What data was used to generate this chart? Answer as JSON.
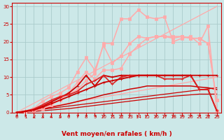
{
  "background_color": "#cce8e8",
  "grid_color": "#aacccc",
  "xlabel": "Vent moyen/en rafales ( km/h )",
  "xlim": [
    -0.5,
    23.5
  ],
  "ylim": [
    0,
    31
  ],
  "yticks": [
    0,
    5,
    10,
    15,
    20,
    25,
    30
  ],
  "xticks": [
    0,
    1,
    2,
    3,
    4,
    5,
    6,
    7,
    8,
    9,
    10,
    11,
    12,
    13,
    14,
    15,
    16,
    17,
    18,
    19,
    20,
    21,
    22,
    23
  ],
  "red_dark": "#cc0000",
  "red_mid": "#ee2222",
  "red_light": "#ff8888",
  "series": [
    {
      "name": "ref_diagonal_light_top",
      "x": [
        0,
        23
      ],
      "y": [
        0,
        30
      ],
      "color": "#ffaaaa",
      "lw": 0.9,
      "marker": null,
      "zorder": 1
    },
    {
      "name": "ref_diagonal_light_low",
      "x": [
        0,
        23
      ],
      "y": [
        0,
        10
      ],
      "color": "#ffaaaa",
      "lw": 0.9,
      "marker": null,
      "zorder": 1
    },
    {
      "name": "ref_diagonal_dark_low",
      "x": [
        0,
        23
      ],
      "y": [
        0,
        7
      ],
      "color": "#cc0000",
      "lw": 0.9,
      "marker": null,
      "zorder": 1
    },
    {
      "name": "line_pink_top_jagged",
      "x": [
        0,
        1,
        2,
        3,
        4,
        5,
        6,
        7,
        8,
        9,
        10,
        11,
        12,
        13,
        14,
        15,
        16,
        17,
        18,
        19,
        20,
        21,
        22,
        23
      ],
      "y": [
        0,
        0.3,
        0.8,
        1.5,
        3.0,
        4.5,
        5.2,
        6.5,
        9.0,
        11.0,
        19.5,
        19.5,
        26.5,
        26.5,
        29.0,
        27.0,
        26.5,
        27.0,
        20.0,
        21.0,
        21.5,
        19.5,
        24.5,
        0.5
      ],
      "color": "#ffaaaa",
      "lw": 1.1,
      "marker": "s",
      "markersize": 2.2,
      "zorder": 3
    },
    {
      "name": "line_pink_second",
      "x": [
        0,
        1,
        2,
        3,
        4,
        5,
        6,
        7,
        8,
        9,
        10,
        11,
        12,
        13,
        14,
        15,
        16,
        17,
        18,
        19,
        20,
        21,
        22,
        23
      ],
      "y": [
        0,
        0.4,
        1.2,
        3.2,
        4.5,
        5.5,
        7.0,
        11.5,
        15.5,
        12.0,
        19.0,
        14.0,
        16.0,
        19.5,
        21.5,
        21.0,
        21.5,
        21.5,
        21.5,
        21.5,
        21.0,
        21.0,
        19.5,
        3.5
      ],
      "color": "#ffaaaa",
      "lw": 1.1,
      "marker": "s",
      "markersize": 2.2,
      "zorder": 3
    },
    {
      "name": "line_pink_third_lower",
      "x": [
        0,
        1,
        2,
        3,
        4,
        5,
        6,
        7,
        8,
        9,
        10,
        11,
        12,
        13,
        14,
        15,
        16,
        17,
        18,
        19,
        20,
        21,
        22,
        23
      ],
      "y": [
        0,
        0.2,
        0.5,
        1.0,
        2.2,
        3.5,
        5.5,
        8.5,
        11.5,
        9.5,
        12.0,
        12.0,
        12.5,
        16.5,
        19.0,
        21.0,
        21.5,
        21.5,
        21.0,
        21.5,
        21.0,
        21.0,
        19.5,
        3.5
      ],
      "color": "#ffaaaa",
      "lw": 1.1,
      "marker": "s",
      "markersize": 2.2,
      "zorder": 3
    },
    {
      "name": "line_dark_red_zigzag",
      "x": [
        0,
        1,
        2,
        3,
        4,
        5,
        6,
        7,
        8,
        9,
        10,
        11,
        12,
        13,
        14,
        15,
        16,
        17,
        18,
        19,
        20,
        21,
        22,
        23
      ],
      "y": [
        0,
        0.3,
        0.8,
        1.8,
        3.0,
        4.2,
        5.5,
        7.5,
        10.5,
        7.5,
        10.5,
        10.0,
        10.5,
        10.5,
        10.5,
        10.5,
        10.5,
        10.5,
        10.5,
        10.5,
        10.5,
        6.5,
        6.5,
        0.5
      ],
      "color": "#cc0000",
      "lw": 1.3,
      "marker": "+",
      "markersize": 3.5,
      "zorder": 4
    },
    {
      "name": "line_mid_red",
      "x": [
        0,
        1,
        2,
        3,
        4,
        5,
        6,
        7,
        8,
        9,
        10,
        11,
        12,
        13,
        14,
        15,
        16,
        17,
        18,
        19,
        20,
        21,
        22,
        23
      ],
      "y": [
        0,
        0.4,
        1.0,
        2.2,
        3.5,
        4.5,
        5.0,
        6.0,
        8.0,
        9.0,
        10.5,
        8.0,
        10.0,
        10.5,
        10.5,
        10.5,
        10.5,
        9.5,
        9.5,
        9.5,
        10.5,
        6.5,
        6.5,
        0.5
      ],
      "color": "#dd2222",
      "lw": 1.2,
      "marker": "+",
      "markersize": 3.5,
      "zorder": 4
    },
    {
      "name": "line_dark_smooth_upper",
      "x": [
        0,
        1,
        2,
        3,
        4,
        5,
        6,
        7,
        8,
        9,
        10,
        11,
        12,
        13,
        14,
        15,
        16,
        17,
        18,
        19,
        20,
        21,
        22,
        23
      ],
      "y": [
        0,
        0.3,
        0.7,
        1.5,
        2.5,
        3.5,
        4.5,
        5.5,
        6.5,
        7.5,
        8.5,
        9.0,
        9.5,
        10.0,
        10.5,
        10.5,
        10.5,
        10.5,
        10.5,
        10.5,
        10.5,
        10.5,
        10.5,
        10.5
      ],
      "color": "#cc0000",
      "lw": 1.3,
      "marker": "+",
      "markersize": 3.5,
      "zorder": 4
    },
    {
      "name": "line_dark_solid_diagonal",
      "x": [
        0,
        1,
        2,
        3,
        4,
        5,
        6,
        7,
        8,
        9,
        10,
        11,
        12,
        13,
        14,
        15,
        16,
        17,
        18,
        19,
        20,
        21,
        22,
        23
      ],
      "y": [
        0,
        0.3,
        0.6,
        1.0,
        1.5,
        2.0,
        2.5,
        3.1,
        3.7,
        4.3,
        5.0,
        5.5,
        6.0,
        6.6,
        7.0,
        7.5,
        7.5,
        7.5,
        7.5,
        7.5,
        7.5,
        7.2,
        7.0,
        6.5
      ],
      "color": "#cc0000",
      "lw": 1.1,
      "marker": null,
      "zorder": 2
    },
    {
      "name": "line_dark_lowest_diagonal",
      "x": [
        0,
        1,
        2,
        3,
        4,
        5,
        6,
        7,
        8,
        9,
        10,
        11,
        12,
        13,
        14,
        15,
        16,
        17,
        18,
        19,
        20,
        21,
        22,
        23
      ],
      "y": [
        0,
        0.15,
        0.3,
        0.5,
        0.7,
        0.9,
        1.1,
        1.4,
        1.7,
        2.0,
        2.3,
        2.6,
        2.9,
        3.2,
        3.5,
        3.8,
        4.1,
        4.3,
        4.6,
        4.8,
        5.0,
        5.2,
        5.2,
        5.2
      ],
      "color": "#cc0000",
      "lw": 0.9,
      "marker": null,
      "zorder": 2
    }
  ],
  "arrow_angles": [
    45,
    45,
    90,
    90,
    90,
    90,
    45,
    45,
    45,
    45,
    45,
    45,
    45,
    45,
    0,
    0,
    45,
    45,
    45,
    45,
    45,
    45,
    45,
    45
  ],
  "tick_fontsize": 5,
  "axis_fontsize": 6.5,
  "axis_fontweight": "bold"
}
